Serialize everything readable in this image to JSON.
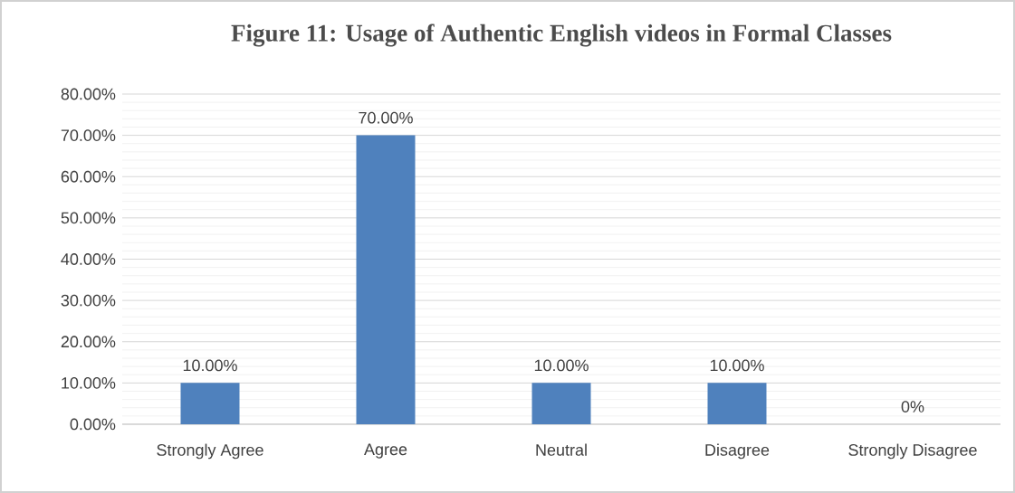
{
  "chart_data": {
    "type": "bar",
    "title": "Figure 11: Usage of Authentic English videos in Formal Classes",
    "categories": [
      "Strongly Agree",
      "Agree",
      "Neutral",
      "Disagree",
      "Strongly Disagree"
    ],
    "values": [
      10,
      70,
      10,
      10,
      0
    ],
    "value_labels": [
      "10.00%",
      "70.00%",
      "10.00%",
      "10.00%",
      "0%"
    ],
    "color": "#4f81bd",
    "ylim": [
      0,
      80
    ],
    "yticks": [
      {
        "value": 0,
        "label": "0.00%"
      },
      {
        "value": 10,
        "label": "10.00%"
      },
      {
        "value": 20,
        "label": "20.00%"
      },
      {
        "value": 30,
        "label": "30.00%"
      },
      {
        "value": 40,
        "label": "40.00%"
      },
      {
        "value": 50,
        "label": "50.00%"
      },
      {
        "value": 60,
        "label": "60.00%"
      },
      {
        "value": 70,
        "label": "70.00%"
      },
      {
        "value": 80,
        "label": "80.00%"
      }
    ],
    "grid": "y"
  }
}
